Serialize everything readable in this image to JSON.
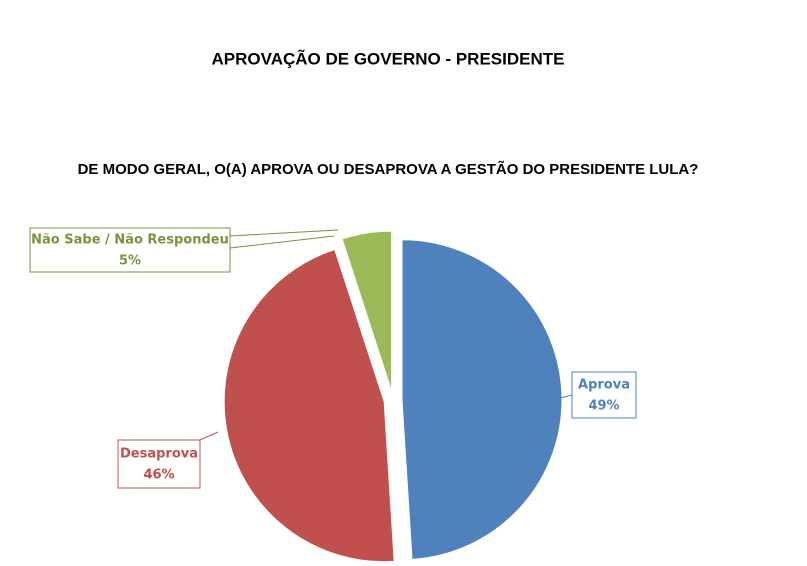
{
  "chart_data": {
    "type": "pie",
    "title": "APROVAÇÃO DE GOVERNO - PRESIDENTE",
    "subtitle": "DE MODO GERAL, O(A) APROVA OU DESAPROVA A GESTÃO DO PRESIDENTE LULA?",
    "categories": [
      "Aprova",
      "Desaprova",
      "Não Sabe / Não Respondeu"
    ],
    "values": [
      49,
      46,
      5
    ],
    "value_labels": [
      "49%",
      "46%",
      "5%"
    ],
    "colors": [
      "#4f81bd",
      "#c0504d",
      "#9bbb59"
    ]
  }
}
